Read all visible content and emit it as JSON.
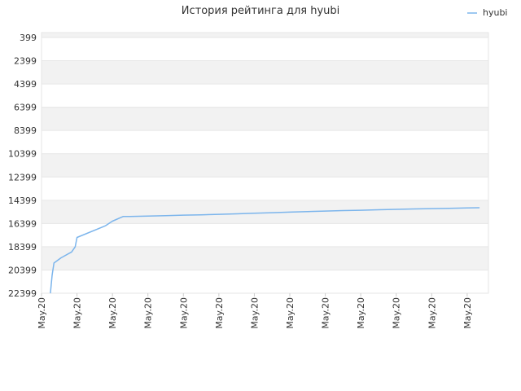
{
  "chart_data": {
    "type": "line",
    "title": "История рейтинга для hyubi",
    "xlabel": "",
    "ylabel": "",
    "y_inverted": true,
    "ylim": [
      399,
      22399
    ],
    "y_ticks": [
      399,
      2399,
      4399,
      6399,
      8399,
      10399,
      12399,
      14399,
      16399,
      18399,
      20399,
      22399
    ],
    "y_tick_labels": [
      "399",
      "2399",
      "4399",
      "6399",
      "8399",
      "10399",
      "12399",
      "14399",
      "16399",
      "18399",
      "20399",
      "22399"
    ],
    "x_tick_labels": [
      "May.20",
      "May.20",
      "May.20",
      "May.20",
      "May.20",
      "May.20",
      "May.20",
      "May.20",
      "May.20",
      "May.20",
      "May.20",
      "May.20",
      "May.20"
    ],
    "x_range": [
      0,
      12.6
    ],
    "grid": "horizontal bands",
    "legend_position": "top-right",
    "series": [
      {
        "name": "hyubi",
        "color": "#7cb5ec",
        "x": [
          0.25,
          0.3,
          0.35,
          0.55,
          0.85,
          0.95,
          1.0,
          1.8,
          2.0,
          2.3,
          2.5,
          3.0,
          3.5,
          4.0,
          4.5,
          5.0,
          5.5,
          6.0,
          6.5,
          7.0,
          7.5,
          8.0,
          8.5,
          9.0,
          9.5,
          10.0,
          10.5,
          11.0,
          11.5,
          12.0,
          12.35
        ],
        "y": [
          22399,
          20800,
          19800,
          19350,
          18850,
          18400,
          17600,
          16600,
          16200,
          15800,
          15800,
          15760,
          15720,
          15680,
          15650,
          15610,
          15570,
          15520,
          15470,
          15420,
          15370,
          15330,
          15290,
          15260,
          15220,
          15180,
          15150,
          15120,
          15090,
          15060,
          15040
        ]
      }
    ]
  }
}
